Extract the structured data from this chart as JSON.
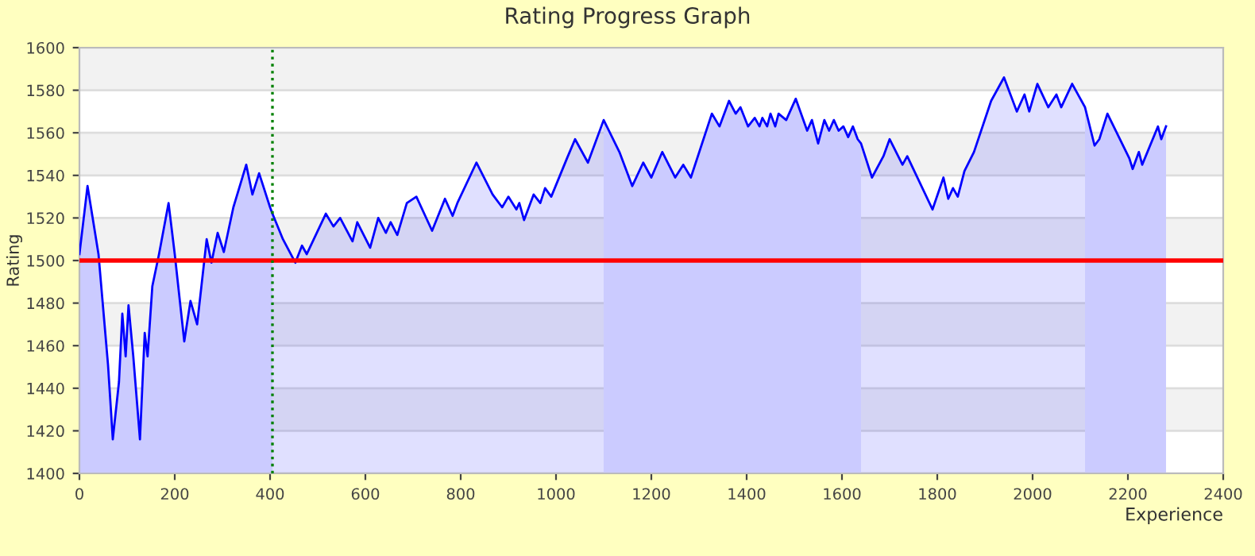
{
  "chart_data": {
    "type": "area",
    "title": "Rating Progress Graph",
    "xlabel": "Experience",
    "ylabel": "Rating",
    "xlim": [
      0,
      2400
    ],
    "xticks": [
      0,
      200,
      400,
      600,
      800,
      1000,
      1200,
      1400,
      1600,
      1800,
      2000,
      2200,
      2400
    ],
    "ylim": [
      1400,
      1600
    ],
    "yticks": [
      1400,
      1420,
      1440,
      1460,
      1480,
      1500,
      1520,
      1540,
      1560,
      1580,
      1600
    ],
    "grid": "y",
    "legend": false,
    "ref_lines": [
      {
        "axis": "y",
        "value": 1500,
        "color": "#ff0000",
        "line_style": "solid"
      },
      {
        "axis": "x",
        "value": 405,
        "color": "#008000",
        "line_style": "dotted"
      }
    ],
    "bands": [
      {
        "axis": "x",
        "from": 0,
        "to": 405,
        "color": "#e8e8ff"
      },
      {
        "axis": "x",
        "from": 1100,
        "to": 1640,
        "color": "#e8e8ff"
      },
      {
        "axis": "x",
        "from": 2110,
        "to": 2280,
        "color": "#e8e8ff"
      }
    ],
    "series": [
      {
        "color": "#0000ff",
        "x": [
          0,
          17,
          40,
          50,
          60,
          70,
          83,
          90,
          97,
          103,
          113,
          127,
          137,
          143,
          153,
          167,
          187,
          200,
          220,
          233,
          247,
          267,
          277,
          290,
          303,
          323,
          350,
          363,
          377,
          400,
          405,
          427,
          453,
          467,
          477,
          517,
          533,
          547,
          573,
          583,
          610,
          627,
          643,
          653,
          667,
          687,
          707,
          740,
          767,
          783,
          793,
          833,
          867,
          887,
          900,
          917,
          923,
          933,
          953,
          967,
          977,
          990,
          1023,
          1040,
          1067,
          1100,
          1133,
          1160,
          1183,
          1200,
          1223,
          1250,
          1267,
          1283,
          1327,
          1343,
          1363,
          1377,
          1387,
          1403,
          1417,
          1427,
          1433,
          1443,
          1450,
          1460,
          1467,
          1483,
          1503,
          1527,
          1537,
          1550,
          1563,
          1573,
          1583,
          1593,
          1603,
          1613,
          1623,
          1633,
          1640,
          1663,
          1687,
          1700,
          1727,
          1737,
          1790,
          1813,
          1823,
          1833,
          1843,
          1857,
          1877,
          1913,
          1940,
          1967,
          1983,
          1993,
          2010,
          2033,
          2050,
          2060,
          2083,
          2110,
          2130,
          2140,
          2157,
          2203,
          2210,
          2223,
          2230,
          2263,
          2270,
          2280
        ],
        "values": [
          1503,
          1535,
          1503,
          1477,
          1451,
          1416,
          1443,
          1475,
          1455,
          1479,
          1455,
          1416,
          1466,
          1455,
          1488,
          1503,
          1527,
          1503,
          1462,
          1481,
          1470,
          1510,
          1499,
          1513,
          1504,
          1525,
          1545,
          1531,
          1541,
          1525,
          1522,
          1510,
          1499,
          1507,
          1503,
          1522,
          1516,
          1520,
          1509,
          1518,
          1506,
          1520,
          1513,
          1518,
          1512,
          1527,
          1530,
          1514,
          1529,
          1521,
          1527,
          1546,
          1531,
          1525,
          1530,
          1524,
          1527,
          1519,
          1531,
          1527,
          1534,
          1530,
          1548,
          1557,
          1546,
          1566,
          1551,
          1535,
          1546,
          1539,
          1551,
          1539,
          1545,
          1539,
          1569,
          1563,
          1575,
          1569,
          1572,
          1563,
          1567,
          1563,
          1567,
          1563,
          1569,
          1563,
          1569,
          1566,
          1576,
          1561,
          1566,
          1555,
          1566,
          1561,
          1566,
          1561,
          1563,
          1558,
          1563,
          1557,
          1555,
          1539,
          1549,
          1557,
          1545,
          1549,
          1524,
          1539,
          1529,
          1534,
          1530,
          1542,
          1551,
          1575,
          1586,
          1570,
          1578,
          1570,
          1583,
          1572,
          1578,
          1572,
          1583,
          1572,
          1554,
          1557,
          1569,
          1548,
          1543,
          1551,
          1545,
          1563,
          1557,
          1563
        ]
      }
    ]
  }
}
